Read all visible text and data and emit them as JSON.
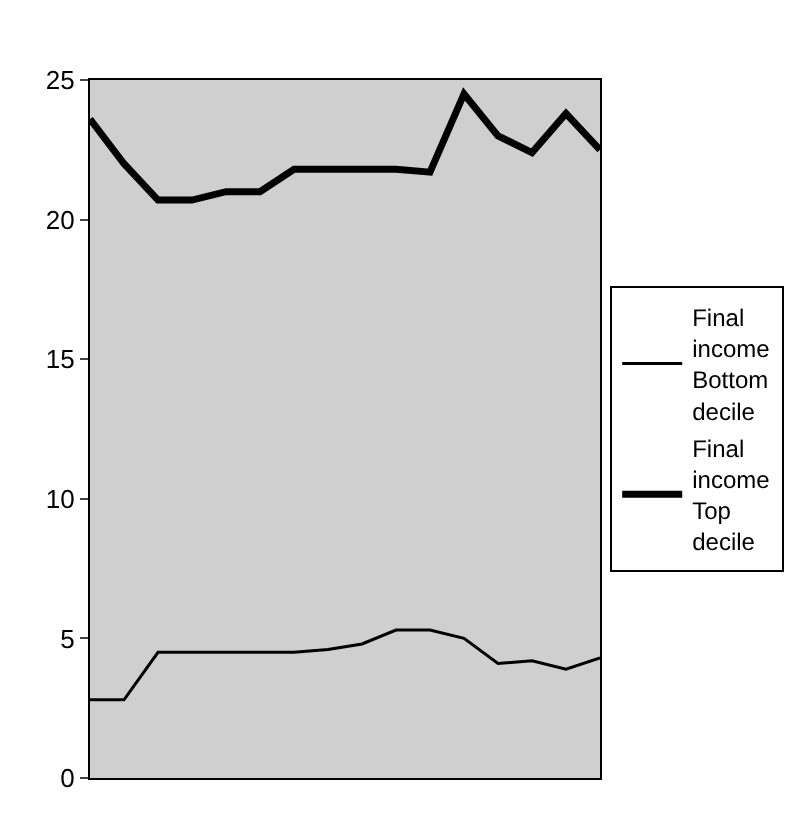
{
  "chart_data": {
    "type": "line",
    "categories": [
      null,
      null,
      null,
      null,
      null,
      null,
      null,
      null,
      null,
      null,
      null,
      null,
      null,
      null,
      null,
      null
    ],
    "series": [
      {
        "name": "Final income Bottom decile",
        "color": "#000000",
        "values": [
          2.8,
          2.8,
          4.5,
          4.5,
          4.5,
          4.5,
          4.5,
          4.6,
          4.8,
          5.3,
          5.3,
          5.0,
          4.1,
          4.2,
          3.9,
          4.3
        ]
      },
      {
        "name": "Final income Top decile",
        "color": "#000000",
        "values": [
          23.6,
          22.0,
          20.7,
          20.7,
          21.0,
          21.0,
          21.8,
          21.8,
          21.8,
          21.8,
          21.7,
          24.5,
          23.0,
          22.4,
          23.8,
          22.5
        ]
      }
    ],
    "ylim": [
      0,
      25
    ],
    "yticks": [
      0,
      5,
      10,
      15,
      20,
      25
    ],
    "tick_labels": "y",
    "grid": false,
    "legend": "right",
    "marker": "none",
    "line_style": "solid"
  }
}
